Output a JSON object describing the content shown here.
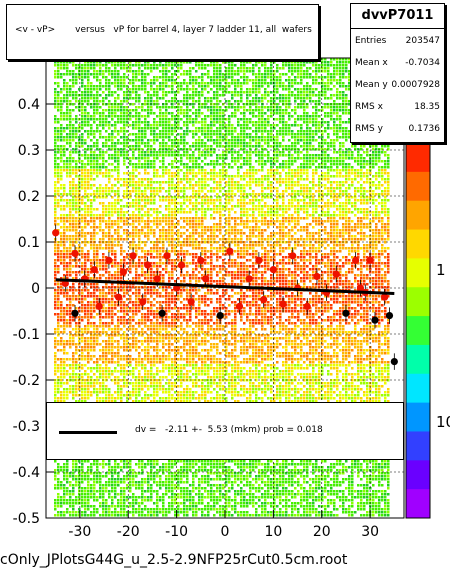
{
  "chart_data": {
    "type": "scatter",
    "title": "<v - vP>       versus   vP for barrel 4, layer 7 ladder 11, all  wafers",
    "xlabel": "",
    "ylabel": "",
    "xlim": [
      -37,
      37
    ],
    "ylim": [
      -0.5,
      0.5
    ],
    "x_ticks": [
      -30,
      -20,
      -10,
      0,
      10,
      20,
      30
    ],
    "y_ticks": [
      -0.5,
      -0.4,
      -0.3,
      -0.2,
      -0.1,
      0,
      0.1,
      0.2,
      0.3,
      0.4
    ],
    "y_tick_labels": [
      "-0.5",
      "-0.4",
      "-0.3",
      "-0.2",
      "-0.1",
      "0",
      "0.1",
      "0.2",
      "0.3",
      "0.4"
    ],
    "grid": true,
    "colorbar": {
      "scale": "log",
      "tick_labels": [
        "10",
        "1",
        "10"
      ],
      "partial_top_label": "0"
    },
    "stats": {
      "name": "dvvP7011",
      "rows": [
        {
          "label": "Entries",
          "value": "203547"
        },
        {
          "label": "Mean x",
          "value": "-0.7034"
        },
        {
          "label": "Mean y",
          "value": "0.0007928"
        },
        {
          "label": "RMS x",
          "value": "18.35"
        },
        {
          "label": "RMS y",
          "value": "0.1736"
        }
      ]
    },
    "fit": {
      "label": "dv =   -2.11 +-  5.53 (mkm) prob = 0.018",
      "x": [
        -35,
        35
      ],
      "y": [
        0.018,
        -0.012
      ]
    },
    "profile_points": [
      {
        "x": -35,
        "y": 0.12
      },
      {
        "x": -33,
        "y": 0.01
      },
      {
        "x": -31,
        "y": 0.075
      },
      {
        "x": -31,
        "y": -0.055
      },
      {
        "x": -29,
        "y": 0.02
      },
      {
        "x": -27,
        "y": 0.04
      },
      {
        "x": -26,
        "y": -0.04
      },
      {
        "x": -24,
        "y": 0.06
      },
      {
        "x": -22,
        "y": -0.02
      },
      {
        "x": -21,
        "y": 0.035
      },
      {
        "x": -19,
        "y": 0.07
      },
      {
        "x": -17,
        "y": -0.03
      },
      {
        "x": -16,
        "y": 0.05
      },
      {
        "x": -14,
        "y": 0.02
      },
      {
        "x": -13,
        "y": -0.055
      },
      {
        "x": -12,
        "y": 0.07
      },
      {
        "x": -10,
        "y": 0.0
      },
      {
        "x": -9,
        "y": 0.05
      },
      {
        "x": -7,
        "y": -0.03
      },
      {
        "x": -5,
        "y": 0.06
      },
      {
        "x": -4,
        "y": 0.02
      },
      {
        "x": -1,
        "y": -0.06
      },
      {
        "x": 1,
        "y": 0.08
      },
      {
        "x": 3,
        "y": -0.04
      },
      {
        "x": 5,
        "y": 0.02
      },
      {
        "x": 7,
        "y": 0.06
      },
      {
        "x": 8,
        "y": -0.025
      },
      {
        "x": 10,
        "y": 0.04
      },
      {
        "x": 12,
        "y": -0.035
      },
      {
        "x": 14,
        "y": 0.07
      },
      {
        "x": 15,
        "y": 0.0
      },
      {
        "x": 17,
        "y": -0.04
      },
      {
        "x": 19,
        "y": 0.025
      },
      {
        "x": 21,
        "y": -0.01
      },
      {
        "x": 23,
        "y": 0.03
      },
      {
        "x": 25,
        "y": -0.055
      },
      {
        "x": 27,
        "y": 0.06
      },
      {
        "x": 28,
        "y": 0.0
      },
      {
        "x": 29,
        "y": -0.01
      },
      {
        "x": 30,
        "y": 0.06
      },
      {
        "x": 31,
        "y": -0.07
      },
      {
        "x": 33,
        "y": -0.02
      },
      {
        "x": 34,
        "y": -0.06
      },
      {
        "x": 35,
        "y": -0.16
      }
    ]
  },
  "footer": "cOnly_JPlotsG44G_u_2.5-2.9NFP25rCut0.5cm.root"
}
